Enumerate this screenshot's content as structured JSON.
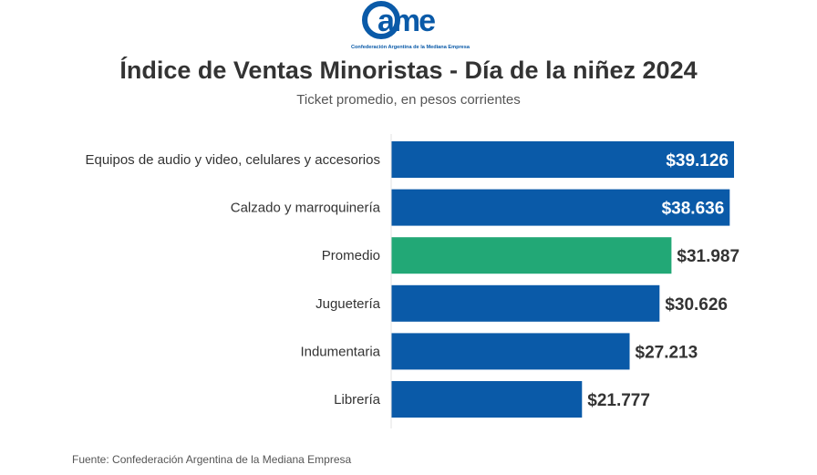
{
  "logo": {
    "text": "came",
    "tagline": "Confederación Argentina de la Mediana Empresa",
    "color": "#0a5aa8"
  },
  "header": {
    "title": "Índice de Ventas Minoristas - Día de la niñez 2024",
    "subtitle": "Ticket promedio, en pesos corrientes"
  },
  "chart_data": {
    "type": "bar",
    "orientation": "horizontal",
    "categories": [
      "Equipos de audio y video, celulares y accesorios",
      "Calzado y marroquinería",
      "Promedio",
      "Juguetería",
      "Indumentaria",
      "Librería"
    ],
    "values": [
      39126,
      38636,
      31987,
      30626,
      27213,
      21777
    ],
    "data_labels": [
      "$39.126",
      "$38.636",
      "$31.987",
      "$30.626",
      "$27.213",
      "$21.777"
    ],
    "colors": [
      "#0a5aa8",
      "#0a5aa8",
      "#22a876",
      "#0a5aa8",
      "#0a5aa8",
      "#0a5aa8"
    ],
    "xlim": [
      0,
      39126
    ],
    "grid": false
  },
  "footer": {
    "source": "Fuente: Confederación Argentina de la Mediana Empresa"
  }
}
